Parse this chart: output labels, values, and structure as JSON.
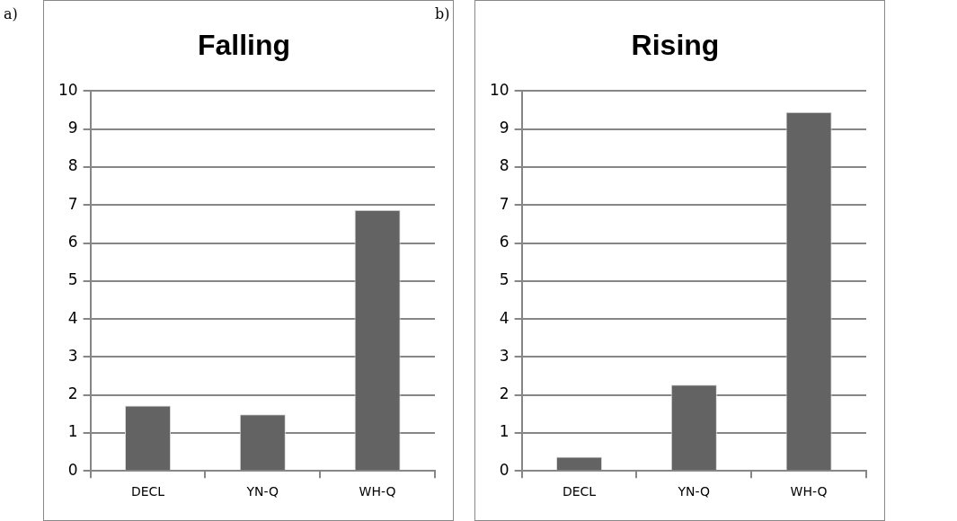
{
  "chart_data": [
    {
      "type": "bar",
      "title": "Falling",
      "annotations": [
        "a)"
      ],
      "categories": [
        "DECL",
        "YN-Q",
        "WH-Q"
      ],
      "values": [
        1.72,
        1.49,
        6.87
      ],
      "color": "#636363",
      "ylim": [
        0,
        10
      ],
      "yticks": [
        0,
        1,
        2,
        3,
        4,
        5,
        6,
        7,
        8,
        9,
        10
      ],
      "grid": "y",
      "legend": false
    },
    {
      "type": "bar",
      "title": "Rising",
      "annotations": [
        "b)"
      ],
      "categories": [
        "DECL",
        "YN-Q",
        "WH-Q"
      ],
      "values": [
        0.37,
        2.27,
        9.45
      ],
      "color": "#636363",
      "ylim": [
        0,
        10
      ],
      "yticks": [
        0,
        1,
        2,
        3,
        4,
        5,
        6,
        7,
        8,
        9,
        10
      ],
      "grid": "y",
      "legend": false
    }
  ]
}
